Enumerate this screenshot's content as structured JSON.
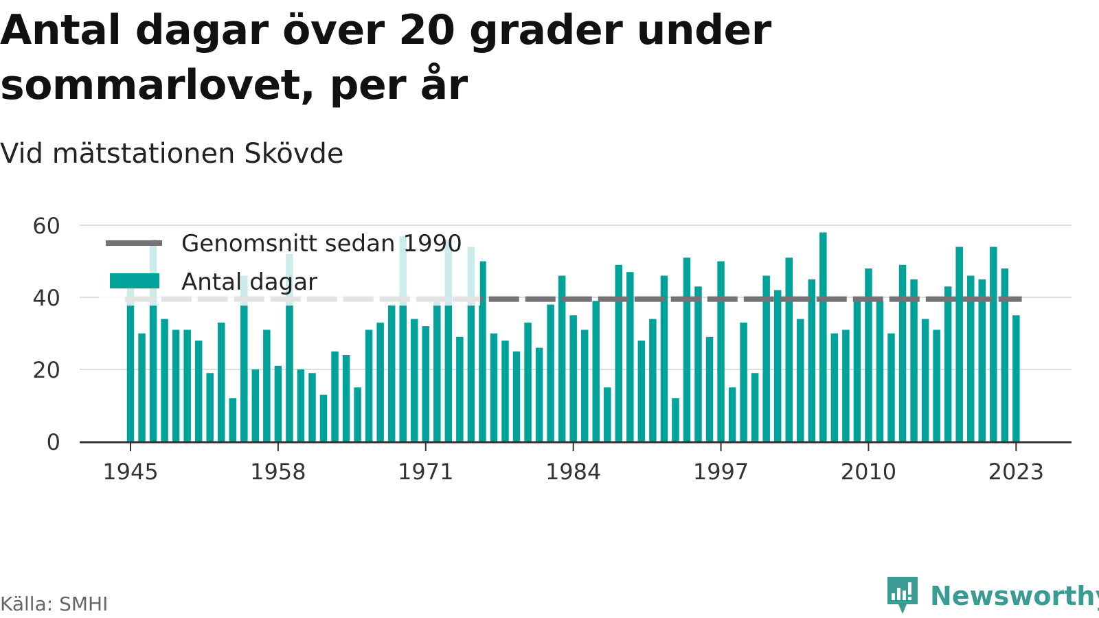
{
  "title": "Antal dagar över 20 grader under sommarlovet, per år",
  "subtitle": "Vid mätstationen Skövde",
  "source": "Källa: SMHI",
  "brand": "Newsworthy",
  "colors": {
    "bar": "#00a29a",
    "average": "#747275",
    "grid": "#dddddd",
    "axis": "#333333",
    "brand": "#3a9a94"
  },
  "chart_data": {
    "type": "bar",
    "x": [
      1945,
      1946,
      1947,
      1948,
      1949,
      1950,
      1951,
      1952,
      1953,
      1954,
      1955,
      1956,
      1957,
      1958,
      1959,
      1960,
      1961,
      1962,
      1963,
      1964,
      1965,
      1966,
      1967,
      1968,
      1969,
      1970,
      1971,
      1972,
      1973,
      1974,
      1975,
      1976,
      1977,
      1978,
      1979,
      1980,
      1981,
      1982,
      1983,
      1984,
      1985,
      1986,
      1987,
      1988,
      1989,
      1990,
      1991,
      1992,
      1993,
      1994,
      1995,
      1996,
      1997,
      1998,
      1999,
      2000,
      2001,
      2002,
      2003,
      2004,
      2005,
      2006,
      2007,
      2008,
      2009,
      2010,
      2011,
      2012,
      2013,
      2014,
      2015,
      2016,
      2017,
      2018,
      2019,
      2020,
      2021,
      2022,
      2023
    ],
    "series": [
      {
        "name": "Antal dagar",
        "color": "#00a29a",
        "values": [
          43,
          30,
          56,
          34,
          31,
          31,
          28,
          19,
          33,
          12,
          46,
          20,
          31,
          21,
          52,
          20,
          19,
          13,
          25,
          24,
          15,
          31,
          33,
          38,
          57,
          34,
          32,
          40,
          56,
          29,
          54,
          50,
          30,
          28,
          25,
          33,
          26,
          38,
          46,
          35,
          31,
          39,
          15,
          49,
          47,
          28,
          34,
          46,
          12,
          51,
          43,
          29,
          50,
          15,
          33,
          19,
          46,
          42,
          51,
          34,
          45,
          58,
          30,
          31,
          40,
          48,
          39,
          30,
          49,
          45,
          34,
          31,
          43,
          54,
          46,
          45,
          54,
          48,
          35
        ]
      },
      {
        "name": "Genomsnitt sedan 1990",
        "color": "#747275",
        "type": "line",
        "value": 39.5,
        "from": 1944.5,
        "to": 2023.5
      }
    ],
    "xticks": [
      1945,
      1958,
      1971,
      1984,
      1997,
      2010,
      2023
    ],
    "yticks": [
      0,
      20,
      40,
      60
    ],
    "ylim": [
      0,
      62
    ],
    "xlabel": "",
    "ylabel": "",
    "grid": true,
    "legend_position": "top-left"
  }
}
